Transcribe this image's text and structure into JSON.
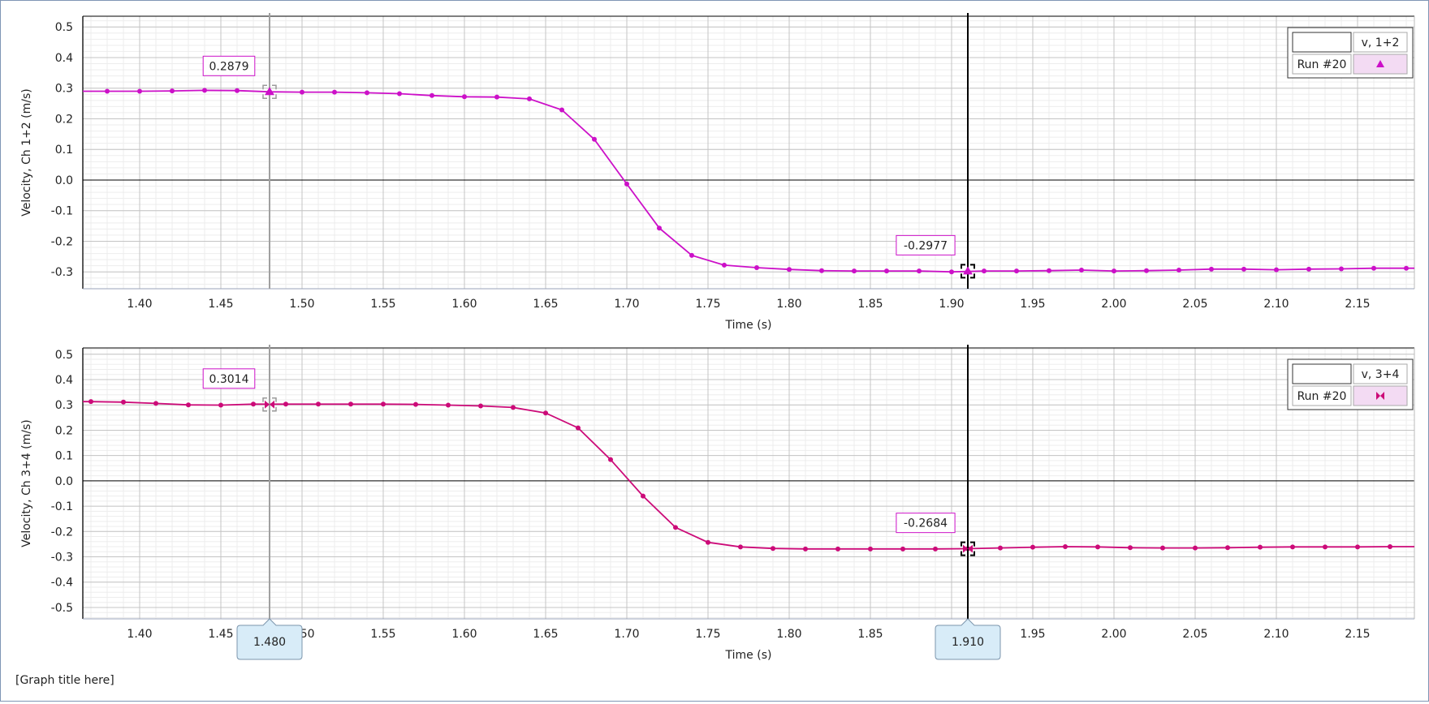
{
  "graph_title": "[Graph title here]",
  "colors": {
    "series_top": "#cc10c8",
    "series_bottom": "#cc0a78",
    "cursor_left": "#a0a0a0",
    "cursor_right": "#000000",
    "readout_border": "#cc10c8",
    "legend_swatch_bg": "#f3dbf3",
    "marker_bg": "#d8ecf8"
  },
  "cursors": {
    "left": {
      "x": 1.48,
      "label": "1.480"
    },
    "right": {
      "x": 1.91,
      "label": "1.910"
    }
  },
  "chart_data": [
    {
      "type": "line",
      "xlabel": "Time (s)",
      "ylabel": "Velocity, Ch 1+2 (m/s)",
      "xlim": [
        1.365,
        2.185
      ],
      "ylim": [
        -0.355,
        0.535
      ],
      "x_ticks": [
        "1.40",
        "1.45",
        "1.50",
        "1.55",
        "1.60",
        "1.65",
        "1.70",
        "1.75",
        "1.80",
        "1.85",
        "1.90",
        "1.95",
        "2.00",
        "2.05",
        "2.10",
        "2.15"
      ],
      "y_ticks": [
        "0.5",
        "0.4",
        "0.3",
        "0.2",
        "0.1",
        "0.0",
        "-0.1",
        "-0.2",
        "-0.3"
      ],
      "grid": true,
      "legend_placement": "top-right",
      "legend": {
        "header_blank": "",
        "header": "v, 1+2",
        "run": "Run #20",
        "marker": "triangle-icon"
      },
      "readouts": [
        {
          "x": 1.48,
          "y": 0.2879,
          "label": "0.2879"
        },
        {
          "x": 1.91,
          "y": -0.2977,
          "label": "-0.2977"
        }
      ],
      "series": [
        {
          "name": "Run #20",
          "x": [
            1.36,
            1.38,
            1.4,
            1.42,
            1.44,
            1.46,
            1.48,
            1.5,
            1.52,
            1.54,
            1.56,
            1.58,
            1.6,
            1.62,
            1.64,
            1.66,
            1.68,
            1.7,
            1.72,
            1.74,
            1.76,
            1.78,
            1.8,
            1.82,
            1.84,
            1.86,
            1.88,
            1.9,
            1.92,
            1.94,
            1.96,
            1.98,
            2.0,
            2.02,
            2.04,
            2.06,
            2.08,
            2.1,
            2.12,
            2.14,
            2.16,
            2.18,
            2.2
          ],
          "y": [
            0.29,
            0.29,
            0.29,
            0.291,
            0.293,
            0.292,
            0.288,
            0.287,
            0.287,
            0.285,
            0.282,
            0.276,
            0.272,
            0.271,
            0.265,
            0.229,
            0.133,
            -0.013,
            -0.157,
            -0.246,
            -0.278,
            -0.286,
            -0.292,
            -0.296,
            -0.297,
            -0.297,
            -0.297,
            -0.3,
            -0.297,
            -0.297,
            -0.296,
            -0.294,
            -0.297,
            -0.296,
            -0.294,
            -0.291,
            -0.291,
            -0.293,
            -0.291,
            -0.29,
            -0.288,
            -0.288,
            -0.288
          ]
        }
      ]
    },
    {
      "type": "line",
      "xlabel": "Time (s)",
      "ylabel": "Velocity, Ch 3+4 (m/s)",
      "xlim": [
        1.365,
        2.185
      ],
      "ylim": [
        -0.545,
        0.525
      ],
      "x_ticks": [
        "1.40",
        "1.45",
        "1.50",
        "1.55",
        "1.60",
        "1.65",
        "1.70",
        "1.75",
        "1.80",
        "1.85",
        "1.90",
        "1.95",
        "2.00",
        "2.05",
        "2.10",
        "2.15"
      ],
      "y_ticks": [
        "0.5",
        "0.4",
        "0.3",
        "0.2",
        "0.1",
        "0.0",
        "-0.1",
        "-0.2",
        "-0.3",
        "-0.4",
        "-0.5"
      ],
      "grid": true,
      "legend_placement": "top-right",
      "legend": {
        "header_blank": "",
        "header": "v, 3+4",
        "run": "Run #20",
        "marker": "bowtie-icon"
      },
      "readouts": [
        {
          "x": 1.48,
          "y": 0.3014,
          "label": "0.3014"
        },
        {
          "x": 1.91,
          "y": -0.2684,
          "label": "-0.2684"
        }
      ],
      "series": [
        {
          "name": "Run #20",
          "x": [
            1.35,
            1.37,
            1.39,
            1.41,
            1.43,
            1.45,
            1.47,
            1.49,
            1.51,
            1.53,
            1.55,
            1.57,
            1.59,
            1.61,
            1.63,
            1.65,
            1.67,
            1.69,
            1.71,
            1.73,
            1.75,
            1.77,
            1.79,
            1.81,
            1.83,
            1.85,
            1.87,
            1.89,
            1.91,
            1.93,
            1.95,
            1.97,
            1.99,
            2.01,
            2.03,
            2.05,
            2.07,
            2.09,
            2.11,
            2.13,
            2.15,
            2.17,
            2.19
          ],
          "y": [
            0.313,
            0.313,
            0.311,
            0.306,
            0.3,
            0.299,
            0.303,
            0.303,
            0.303,
            0.303,
            0.303,
            0.302,
            0.299,
            0.296,
            0.29,
            0.268,
            0.209,
            0.084,
            -0.06,
            -0.184,
            -0.243,
            -0.261,
            -0.267,
            -0.269,
            -0.269,
            -0.269,
            -0.269,
            -0.269,
            -0.268,
            -0.265,
            -0.262,
            -0.26,
            -0.261,
            -0.264,
            -0.265,
            -0.265,
            -0.264,
            -0.262,
            -0.261,
            -0.261,
            -0.261,
            -0.26,
            -0.26
          ]
        }
      ]
    }
  ]
}
